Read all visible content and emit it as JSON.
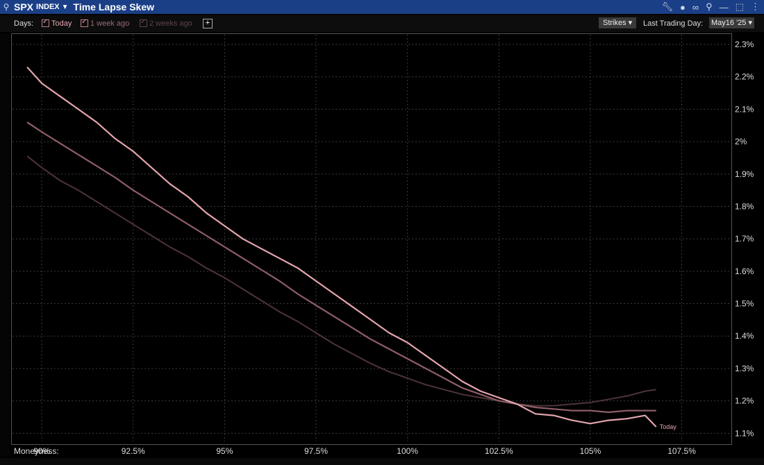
{
  "header": {
    "ticker": "SPX",
    "ticker_suffix": "INDEX",
    "title": "Time Lapse Skew",
    "link_icon": "link-icon",
    "right_icons": [
      "wrench-icon",
      "chat-icon",
      "link-icon",
      "pin-icon",
      "minimize-icon",
      "maximize-icon",
      "close-icon"
    ]
  },
  "toolbar": {
    "days_label": "Days:",
    "today_label": "Today",
    "week_label": "1 week ago",
    "two_weeks_label": "2 weeks ago",
    "add_label": "+",
    "strikes_label": "Strikes ▾",
    "last_day_label": "Last Trading Day:",
    "last_day_value": "May16 '25 ▾"
  },
  "colors": {
    "today": "#e4a6ae",
    "week": "#8e5e68",
    "two_weeks": "#4e343a",
    "grid": "#3c3c3c"
  },
  "chart_data": {
    "type": "line",
    "xlabel": "Moneyness:",
    "x_ticks": [
      "90%",
      "92.5%",
      "95%",
      "97.5%",
      "100%",
      "102.5%",
      "105%",
      "107.5%"
    ],
    "x_tick_values": [
      90,
      92.5,
      95,
      97.5,
      100,
      102.5,
      105,
      107.5
    ],
    "y_ticks": [
      "1.1%",
      "1.2%",
      "1.3%",
      "1.4%",
      "1.5%",
      "1.6%",
      "1.7%",
      "1.8%",
      "1.9%",
      "2%",
      "2.1%",
      "2.2%",
      "2.3%"
    ],
    "y_tick_values": [
      1.1,
      1.2,
      1.3,
      1.4,
      1.5,
      1.6,
      1.7,
      1.8,
      1.9,
      2.0,
      2.1,
      2.2,
      2.3
    ],
    "xlim": [
      89.2,
      108.8
    ],
    "ylim": [
      1.075,
      2.33
    ],
    "grid": true,
    "end_annotation": "Today",
    "series": [
      {
        "name": "Today",
        "x": [
          89.6,
          90.0,
          90.5,
          91.0,
          91.5,
          92.0,
          92.5,
          93.0,
          93.5,
          94.0,
          94.5,
          95.0,
          95.5,
          96.0,
          96.5,
          97.0,
          97.5,
          98.0,
          98.5,
          99.0,
          99.5,
          100.0,
          100.5,
          101.0,
          101.5,
          102.0,
          102.5,
          103.0,
          103.5,
          104.0,
          104.5,
          105.0,
          105.5,
          106.0,
          106.5,
          106.8
        ],
        "values": [
          2.23,
          2.18,
          2.14,
          2.1,
          2.06,
          2.01,
          1.97,
          1.92,
          1.87,
          1.83,
          1.78,
          1.74,
          1.7,
          1.67,
          1.64,
          1.61,
          1.57,
          1.53,
          1.49,
          1.45,
          1.41,
          1.38,
          1.34,
          1.3,
          1.26,
          1.23,
          1.21,
          1.19,
          1.16,
          1.155,
          1.14,
          1.13,
          1.14,
          1.145,
          1.155,
          1.12
        ]
      },
      {
        "name": "1 week ago",
        "x": [
          89.6,
          90.0,
          90.5,
          91.0,
          91.5,
          92.0,
          92.5,
          93.0,
          93.5,
          94.0,
          94.5,
          95.0,
          95.5,
          96.0,
          96.5,
          97.0,
          97.5,
          98.0,
          98.5,
          99.0,
          99.5,
          100.0,
          100.5,
          101.0,
          101.5,
          102.0,
          102.5,
          103.0,
          103.5,
          104.0,
          104.5,
          105.0,
          105.5,
          106.0,
          106.5,
          106.8
        ],
        "values": [
          2.06,
          2.03,
          1.995,
          1.96,
          1.925,
          1.89,
          1.85,
          1.815,
          1.78,
          1.745,
          1.71,
          1.675,
          1.64,
          1.605,
          1.57,
          1.53,
          1.495,
          1.46,
          1.425,
          1.39,
          1.36,
          1.33,
          1.3,
          1.27,
          1.24,
          1.22,
          1.2,
          1.19,
          1.18,
          1.175,
          1.17,
          1.17,
          1.165,
          1.17,
          1.17,
          1.17
        ]
      },
      {
        "name": "2 weeks ago",
        "x": [
          89.6,
          90.0,
          90.5,
          91.0,
          91.5,
          92.0,
          92.5,
          93.0,
          93.5,
          94.0,
          94.5,
          95.0,
          95.5,
          96.0,
          96.5,
          97.0,
          97.5,
          98.0,
          98.5,
          99.0,
          99.5,
          100.0,
          100.5,
          101.0,
          101.5,
          102.0,
          102.5,
          103.0,
          103.5,
          104.0,
          104.5,
          105.0,
          105.5,
          106.0,
          106.5,
          106.8
        ],
        "values": [
          1.955,
          1.92,
          1.88,
          1.85,
          1.815,
          1.78,
          1.745,
          1.71,
          1.675,
          1.645,
          1.61,
          1.58,
          1.545,
          1.51,
          1.475,
          1.445,
          1.41,
          1.375,
          1.345,
          1.315,
          1.29,
          1.27,
          1.25,
          1.235,
          1.22,
          1.21,
          1.2,
          1.19,
          1.185,
          1.185,
          1.19,
          1.195,
          1.205,
          1.215,
          1.23,
          1.235
        ]
      }
    ]
  }
}
